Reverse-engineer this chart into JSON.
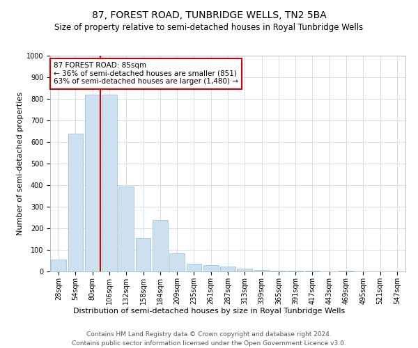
{
  "title": "87, FOREST ROAD, TUNBRIDGE WELLS, TN2 5BA",
  "subtitle": "Size of property relative to semi-detached houses in Royal Tunbridge Wells",
  "xlabel_bottom": "Distribution of semi-detached houses by size in Royal Tunbridge Wells",
  "ylabel": "Number of semi-detached properties",
  "footer_line1": "Contains HM Land Registry data © Crown copyright and database right 2024.",
  "footer_line2": "Contains public sector information licensed under the Open Government Licence v3.0.",
  "bar_labels": [
    "28sqm",
    "54sqm",
    "80sqm",
    "106sqm",
    "132sqm",
    "158sqm",
    "184sqm",
    "209sqm",
    "235sqm",
    "261sqm",
    "287sqm",
    "313sqm",
    "339sqm",
    "365sqm",
    "391sqm",
    "417sqm",
    "443sqm",
    "469sqm",
    "495sqm",
    "521sqm",
    "547sqm"
  ],
  "bar_values": [
    55,
    640,
    820,
    820,
    395,
    155,
    240,
    85,
    35,
    28,
    22,
    13,
    8,
    4,
    3,
    2,
    0,
    4,
    0,
    1,
    1
  ],
  "bar_color": "#cce0f0",
  "bar_edge_color": "#a0c4e0",
  "grid_color": "#d4dce8",
  "annotation_line_color": "#cc0000",
  "annotation_box_edge": "#cc0000",
  "annotation_text_line1": "87 FOREST ROAD: 85sqm",
  "annotation_text_line2": "← 36% of semi-detached houses are smaller (851)",
  "annotation_text_line3": "63% of semi-detached houses are larger (1,480) →",
  "property_bar_index": 2,
  "ylim": [
    0,
    1000
  ],
  "yticks": [
    0,
    100,
    200,
    300,
    400,
    500,
    600,
    700,
    800,
    900,
    1000
  ],
  "title_fontsize": 10,
  "subtitle_fontsize": 8.5,
  "ylabel_fontsize": 8,
  "tick_fontsize": 7,
  "annotation_fontsize": 7.5,
  "footer_fontsize": 6.5,
  "xlabel_fontsize": 8
}
